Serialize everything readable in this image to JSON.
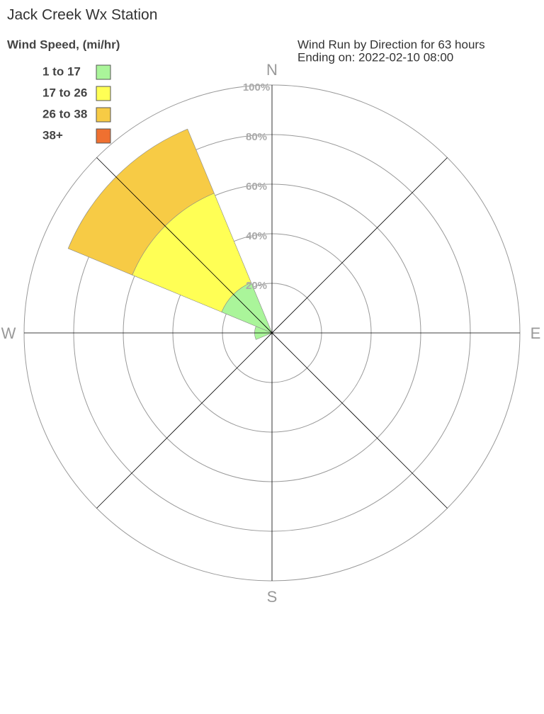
{
  "chart_data": {
    "type": "windrose",
    "title": "Jack Creek Wx Station",
    "legend_title": "Wind Speed, (mi/hr)",
    "subtitle": [
      "Wind Run by Direction for 63 hours",
      "Ending on: 2022-02-10 08:00"
    ],
    "categories": [
      "N",
      null,
      "E",
      null,
      "S",
      null,
      "W",
      null
    ],
    "series": [
      {
        "name": "1 to 17",
        "color": "#aaf59a",
        "values": [
          0,
          0,
          0,
          0,
          0,
          0,
          7,
          22
        ]
      },
      {
        "name": "17 to 26",
        "color": "#ffff55",
        "values": [
          0,
          0,
          0,
          0,
          0,
          0,
          0,
          39
        ]
      },
      {
        "name": "26 to 38",
        "color": "#f7cb45",
        "values": [
          0,
          0,
          0,
          0,
          0,
          0,
          0,
          28
        ]
      },
      {
        "name": "38+",
        "color": "#ef7030",
        "values": [
          0,
          0,
          0,
          0,
          0,
          0,
          0,
          0
        ]
      }
    ],
    "rlim": [
      0,
      100
    ],
    "rticks": [
      {
        "value": 20,
        "label": "20%"
      },
      {
        "value": 40,
        "label": "40%"
      },
      {
        "value": 60,
        "label": "60%"
      },
      {
        "value": 80,
        "label": "80%"
      },
      {
        "value": 100,
        "label": "100%"
      }
    ],
    "grid": true
  }
}
